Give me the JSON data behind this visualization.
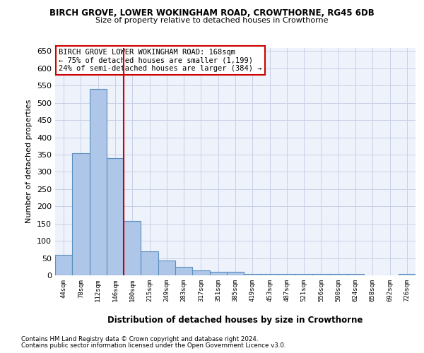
{
  "title": "BIRCH GROVE, LOWER WOKINGHAM ROAD, CROWTHORNE, RG45 6DB",
  "subtitle": "Size of property relative to detached houses in Crowthorne",
  "xlabel": "Distribution of detached houses by size in Crowthorne",
  "ylabel": "Number of detached properties",
  "bar_values": [
    60,
    355,
    540,
    340,
    158,
    70,
    42,
    25,
    15,
    10,
    10,
    5,
    5,
    5,
    5,
    5,
    5,
    5,
    0,
    0,
    5
  ],
  "x_labels": [
    "44sqm",
    "78sqm",
    "112sqm",
    "146sqm",
    "180sqm",
    "215sqm",
    "249sqm",
    "283sqm",
    "317sqm",
    "351sqm",
    "385sqm",
    "419sqm",
    "453sqm",
    "487sqm",
    "521sqm",
    "556sqm",
    "590sqm",
    "624sqm",
    "658sqm",
    "692sqm",
    "726sqm"
  ],
  "bar_color": "#aec6e8",
  "bar_edge_color": "#5b8fbe",
  "ylim": [
    0,
    660
  ],
  "yticks": [
    0,
    50,
    100,
    150,
    200,
    250,
    300,
    350,
    400,
    450,
    500,
    550,
    600,
    650
  ],
  "red_line_x": 3.5,
  "annotation_text": "BIRCH GROVE LOWER WOKINGHAM ROAD: 168sqm\n← 75% of detached houses are smaller (1,199)\n24% of semi-detached houses are larger (384) →",
  "annotation_box_color": "#ffffff",
  "annotation_box_edge": "#cc0000",
  "bg_color": "#eef2fb",
  "grid_color": "#c8d0e8",
  "footnote1": "Contains HM Land Registry data © Crown copyright and database right 2024.",
  "footnote2": "Contains public sector information licensed under the Open Government Licence v3.0."
}
